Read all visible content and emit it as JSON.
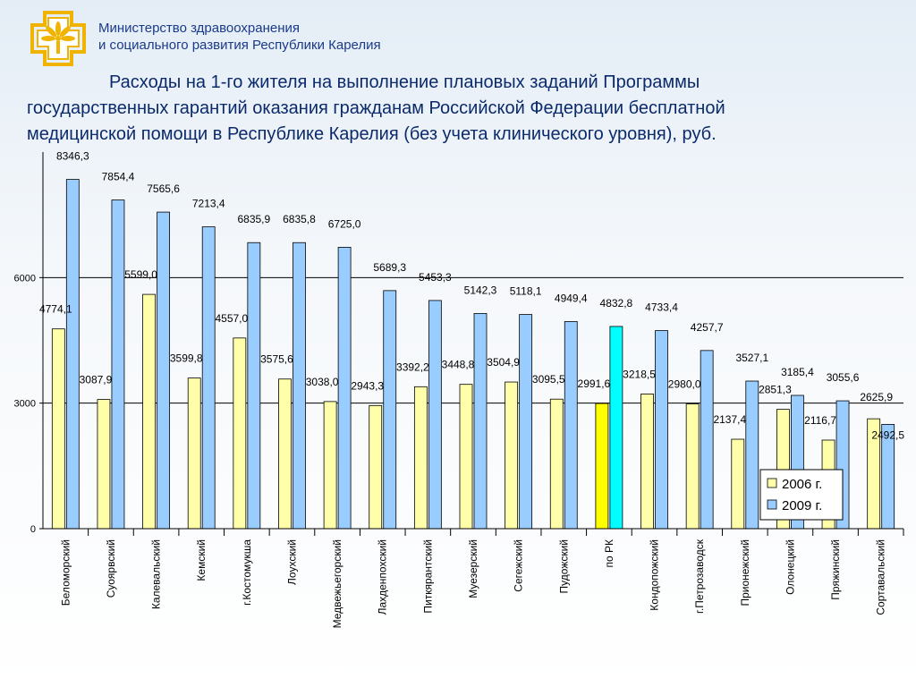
{
  "header": {
    "ministry_line1": "Министерство здравоохранения",
    "ministry_line2": "и социального развития Республики Карелия"
  },
  "title": {
    "line1": "Расходы на 1-го жителя на выполнение плановых заданий Программы",
    "line2": "государственных гарантий оказания гражданам Российской Федерации бесплатной",
    "line3": "медицинской помощи в Республике Карелия (без учета клинического уровня), руб."
  },
  "colors": {
    "bar_2006": "#ffffaa",
    "bar_2009": "#99ccff",
    "highlight_2006": "#ffff00",
    "highlight_2009": "#00ffff",
    "title": "#0b2a6b",
    "logo": "#f0b400"
  },
  "chart_data": {
    "type": "bar",
    "categories": [
      "Беломорский",
      "Суоярвский",
      "Калевальский",
      "Кемский",
      "г.Костомукша",
      "Лоухский",
      "Медвежьегорский",
      "Лахденпохский",
      "Питкярантский",
      "Муезерский",
      "Сегежский",
      "Пудожский",
      "по РК",
      "Кондопожский",
      "г.Петрозаводск",
      "Прионежский",
      "Олонецкий",
      "Пряжинский",
      "Сортавальский"
    ],
    "series": [
      {
        "name": "2006 г.",
        "values": [
          4774.1,
          3087.9,
          5599.0,
          3599.8,
          4557.0,
          3575.6,
          3038.0,
          2943.3,
          3392.2,
          3448.8,
          3504.9,
          3095.5,
          2991.6,
          3218.5,
          2980.0,
          2137.4,
          2851.3,
          2116.7,
          2625.9
        ],
        "labels": [
          "4774,1",
          "3087,9",
          "5599,0",
          "3599,8",
          "4557,0",
          "3575,6",
          "3038,0",
          "2943,3",
          "3392,2",
          "3448,8",
          "3504,9",
          "3095,5",
          "2991,6",
          "3218,5",
          "2980,0",
          "2137,4",
          "2851,3",
          "2116,7",
          "2625,9"
        ]
      },
      {
        "name": "2009 г.",
        "values": [
          8346.3,
          7854.4,
          7565.6,
          7213.4,
          6835.9,
          6835.8,
          6725.0,
          5689.3,
          5453.3,
          5142.3,
          5118.1,
          4949.4,
          4832.8,
          4733.4,
          4257.7,
          3527.1,
          3185.4,
          3055.6,
          2492.5
        ],
        "labels": [
          "8346,3",
          "7854,4",
          "7565,6",
          "7213,4",
          "6835,9",
          "6835,8",
          "6725,0",
          "5689,3",
          "5453,3",
          "5142,3",
          "5118,1",
          "4949,4",
          "4832,8",
          "4733,4",
          "4257,7",
          "3527,1",
          "3185,4",
          "3055,6",
          "2492,5"
        ]
      }
    ],
    "highlight_category": "по РК",
    "yticks": [
      "0",
      "3000",
      "6000"
    ],
    "ylim": [
      0,
      9000
    ],
    "grid": true,
    "legend_position": "bottom-right"
  }
}
